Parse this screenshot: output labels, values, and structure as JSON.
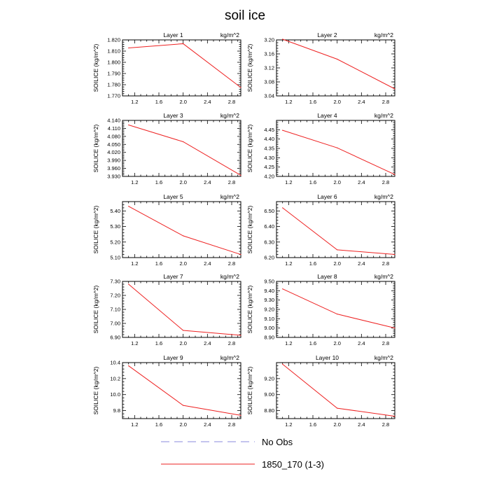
{
  "figure": {
    "title": "soil ice"
  },
  "legend": {
    "entries": [
      {
        "label": "No Obs",
        "color": "#8888dd",
        "style": "dashed"
      },
      {
        "label": "1850_170 (1-3)",
        "color": "#ee2222",
        "style": "solid"
      }
    ]
  },
  "chart_data": [
    {
      "type": "line",
      "title": "Layer 1",
      "units": "kg/m^2",
      "ylabel": "SOILICE  (kg/m^2)",
      "x": [
        1.1,
        2.0,
        2.95
      ],
      "xlim": [
        1.0,
        2.95
      ],
      "xticks": [
        "1.2",
        "1.6",
        "2.0",
        "2.4",
        "2.8"
      ],
      "ylim": [
        1.77,
        1.82
      ],
      "yticks": [
        "1.770",
        "1.780",
        "1.790",
        "1.800",
        "1.810",
        "1.820"
      ],
      "series": [
        {
          "name": "1850_170 (1-3)",
          "values": [
            1.8128,
            1.8166,
            1.7775
          ]
        }
      ]
    },
    {
      "type": "line",
      "title": "Layer 2",
      "units": "kg/m^2",
      "ylabel": "SOILICE  (kg/m^2)",
      "x": [
        1.1,
        2.0,
        2.95
      ],
      "xlim": [
        1.0,
        2.95
      ],
      "xticks": [
        "1.2",
        "1.6",
        "2.0",
        "2.4",
        "2.8"
      ],
      "ylim": [
        3.04,
        3.2
      ],
      "yticks": [
        "3.04",
        "3.08",
        "3.12",
        "3.16",
        "3.20"
      ],
      "series": [
        {
          "name": "1850_170 (1-3)",
          "values": [
            3.202,
            3.145,
            3.06
          ]
        }
      ]
    },
    {
      "type": "line",
      "title": "Layer 3",
      "units": "kg/m^2",
      "ylabel": "SOILICE  (kg/m^2)",
      "x": [
        1.1,
        2.0,
        2.95
      ],
      "xlim": [
        1.0,
        2.95
      ],
      "xticks": [
        "1.2",
        "1.6",
        "2.0",
        "2.4",
        "2.8"
      ],
      "ylim": [
        3.93,
        4.14
      ],
      "yticks": [
        "3.930",
        "3.960",
        "3.990",
        "4.020",
        "4.050",
        "4.080",
        "4.110",
        "4.140"
      ],
      "series": [
        {
          "name": "1850_170 (1-3)",
          "values": [
            4.123,
            4.06,
            3.934
          ]
        }
      ]
    },
    {
      "type": "line",
      "title": "Layer 4",
      "units": "kg/m^2",
      "ylabel": "SOILICE  (kg/m^2)",
      "x": [
        1.1,
        2.0,
        2.95
      ],
      "xlim": [
        1.0,
        2.95
      ],
      "xticks": [
        "1.2",
        "1.6",
        "2.0",
        "2.4",
        "2.8"
      ],
      "ylim": [
        4.2,
        4.5
      ],
      "yticks": [
        "4.20",
        "4.25",
        "4.30",
        "4.35",
        "4.40",
        "4.45"
      ],
      "series": [
        {
          "name": "1850_170 (1-3)",
          "values": [
            4.447,
            4.353,
            4.21
          ]
        }
      ]
    },
    {
      "type": "line",
      "title": "Layer 5",
      "units": "kg/m^2",
      "ylabel": "SOILICE  (kg/m^2)",
      "x": [
        1.1,
        2.0,
        2.95
      ],
      "xlim": [
        1.0,
        2.95
      ],
      "xticks": [
        "1.2",
        "1.6",
        "2.0",
        "2.4",
        "2.8"
      ],
      "ylim": [
        5.1,
        5.46
      ],
      "yticks": [
        "5.10",
        "5.20",
        "5.30",
        "5.40"
      ],
      "series": [
        {
          "name": "1850_170 (1-3)",
          "values": [
            5.43,
            5.24,
            5.12
          ]
        }
      ]
    },
    {
      "type": "line",
      "title": "Layer 6",
      "units": "kg/m^2",
      "ylabel": "SOILICE  (kg/m^2)",
      "x": [
        1.1,
        2.0,
        2.95
      ],
      "xlim": [
        1.0,
        2.95
      ],
      "xticks": [
        "1.2",
        "1.6",
        "2.0",
        "2.4",
        "2.8"
      ],
      "ylim": [
        6.2,
        6.56
      ],
      "yticks": [
        "6.20",
        "6.30",
        "6.40",
        "6.50"
      ],
      "series": [
        {
          "name": "1850_170 (1-3)",
          "values": [
            6.52,
            6.25,
            6.22
          ]
        }
      ]
    },
    {
      "type": "line",
      "title": "Layer 7",
      "units": "kg/m^2",
      "ylabel": "SOILICE  (kg/m^2)",
      "x": [
        1.1,
        2.0,
        2.95
      ],
      "xlim": [
        1.0,
        2.95
      ],
      "xticks": [
        "1.2",
        "1.6",
        "2.0",
        "2.4",
        "2.8"
      ],
      "ylim": [
        6.9,
        7.3
      ],
      "yticks": [
        "6.90",
        "7.00",
        "7.10",
        "7.20",
        "7.30"
      ],
      "series": [
        {
          "name": "1850_170 (1-3)",
          "values": [
            7.28,
            6.95,
            6.915
          ]
        }
      ]
    },
    {
      "type": "line",
      "title": "Layer 8",
      "units": "kg/m^2",
      "ylabel": "SOILICE  (kg/m^2)",
      "x": [
        1.1,
        2.0,
        2.95
      ],
      "xlim": [
        1.0,
        2.95
      ],
      "xticks": [
        "1.2",
        "1.6",
        "2.0",
        "2.4",
        "2.8"
      ],
      "ylim": [
        8.9,
        9.5
      ],
      "yticks": [
        "8.90",
        "9.00",
        "9.10",
        "9.20",
        "9.30",
        "9.40",
        "9.50"
      ],
      "series": [
        {
          "name": "1850_170 (1-3)",
          "values": [
            9.42,
            9.15,
            9.0
          ]
        }
      ]
    },
    {
      "type": "line",
      "title": "Layer 9",
      "units": "kg/m^2",
      "ylabel": "SOILICE  (kg/m^2)",
      "x": [
        1.1,
        2.0,
        2.95
      ],
      "xlim": [
        1.0,
        2.95
      ],
      "xticks": [
        "1.2",
        "1.6",
        "2.0",
        "2.4",
        "2.8"
      ],
      "ylim": [
        9.7,
        10.4
      ],
      "yticks": [
        "9.8",
        "10.0",
        "10.2",
        "10.4"
      ],
      "series": [
        {
          "name": "1850_170 (1-3)",
          "values": [
            10.36,
            9.865,
            9.74
          ]
        }
      ]
    },
    {
      "type": "line",
      "title": "Layer 10",
      "units": "kg/m^2",
      "ylabel": "SOILICE  (kg/m^2)",
      "x": [
        1.1,
        2.0,
        2.95
      ],
      "xlim": [
        1.0,
        2.95
      ],
      "xticks": [
        "1.2",
        "1.6",
        "2.0",
        "2.4",
        "2.8"
      ],
      "ylim": [
        8.7,
        9.4
      ],
      "yticks": [
        "8.80",
        "9.00",
        "9.20"
      ],
      "series": [
        {
          "name": "1850_170 (1-3)",
          "values": [
            9.38,
            8.83,
            8.73
          ]
        }
      ]
    }
  ]
}
